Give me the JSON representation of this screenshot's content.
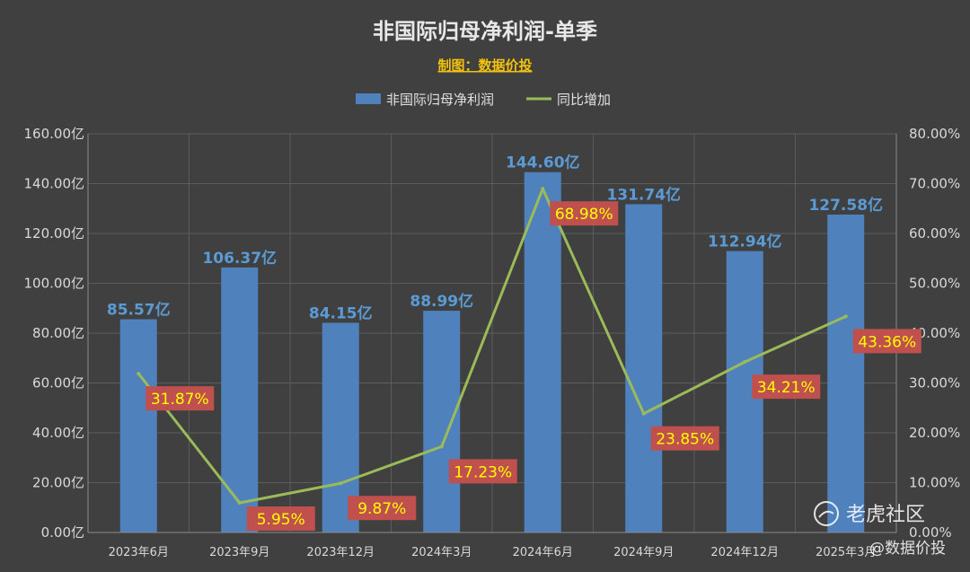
{
  "chart_data": {
    "type": "bar+line",
    "title": "非国际归母净利润-单季",
    "subtitle": "制图：数据价投",
    "categories": [
      "2023年6月",
      "2023年9月",
      "2023年12月",
      "2024年3月",
      "2024年6月",
      "2024年9月",
      "2024年12月",
      "2025年3月"
    ],
    "series": [
      {
        "name": "非国际归母净利润",
        "type": "bar",
        "axis": "left",
        "color": "#4f81bd",
        "values": [
          85.57,
          106.37,
          84.15,
          88.99,
          144.6,
          131.74,
          112.94,
          127.58
        ],
        "labels": [
          "85.57亿",
          "106.37亿",
          "84.15亿",
          "88.99亿",
          "144.60亿",
          "131.74亿",
          "112.94亿",
          "127.58亿"
        ]
      },
      {
        "name": "同比增加",
        "type": "line",
        "axis": "right",
        "color": "#9bbb59",
        "values": [
          31.87,
          5.95,
          9.87,
          17.23,
          68.98,
          23.85,
          34.21,
          43.36
        ],
        "labels": [
          "31.87%",
          "5.95%",
          "9.87%",
          "17.23%",
          "68.98%",
          "23.85%",
          "34.21%",
          "43.36%"
        ]
      }
    ],
    "y_left": {
      "range": [
        0,
        160
      ],
      "ticks": [
        "0.00亿",
        "20.00亿",
        "40.00亿",
        "60.00亿",
        "80.00亿",
        "100.00亿",
        "120.00亿",
        "140.00亿",
        "160.00亿"
      ]
    },
    "y_right": {
      "range": [
        0,
        80
      ],
      "ticks": [
        "0.00%",
        "10.00%",
        "20.00%",
        "30.00%",
        "40.00%",
        "50.00%",
        "60.00%",
        "70.00%",
        "80.00%"
      ]
    },
    "grid": true,
    "legend_position": "top",
    "colors": {
      "background": "#404040",
      "label_box": "#c0504d",
      "label_text": "#ffff00"
    }
  },
  "watermark": {
    "icon": "tiger-logo-icon",
    "brand": "老虎社区",
    "author": "@数据价投"
  }
}
